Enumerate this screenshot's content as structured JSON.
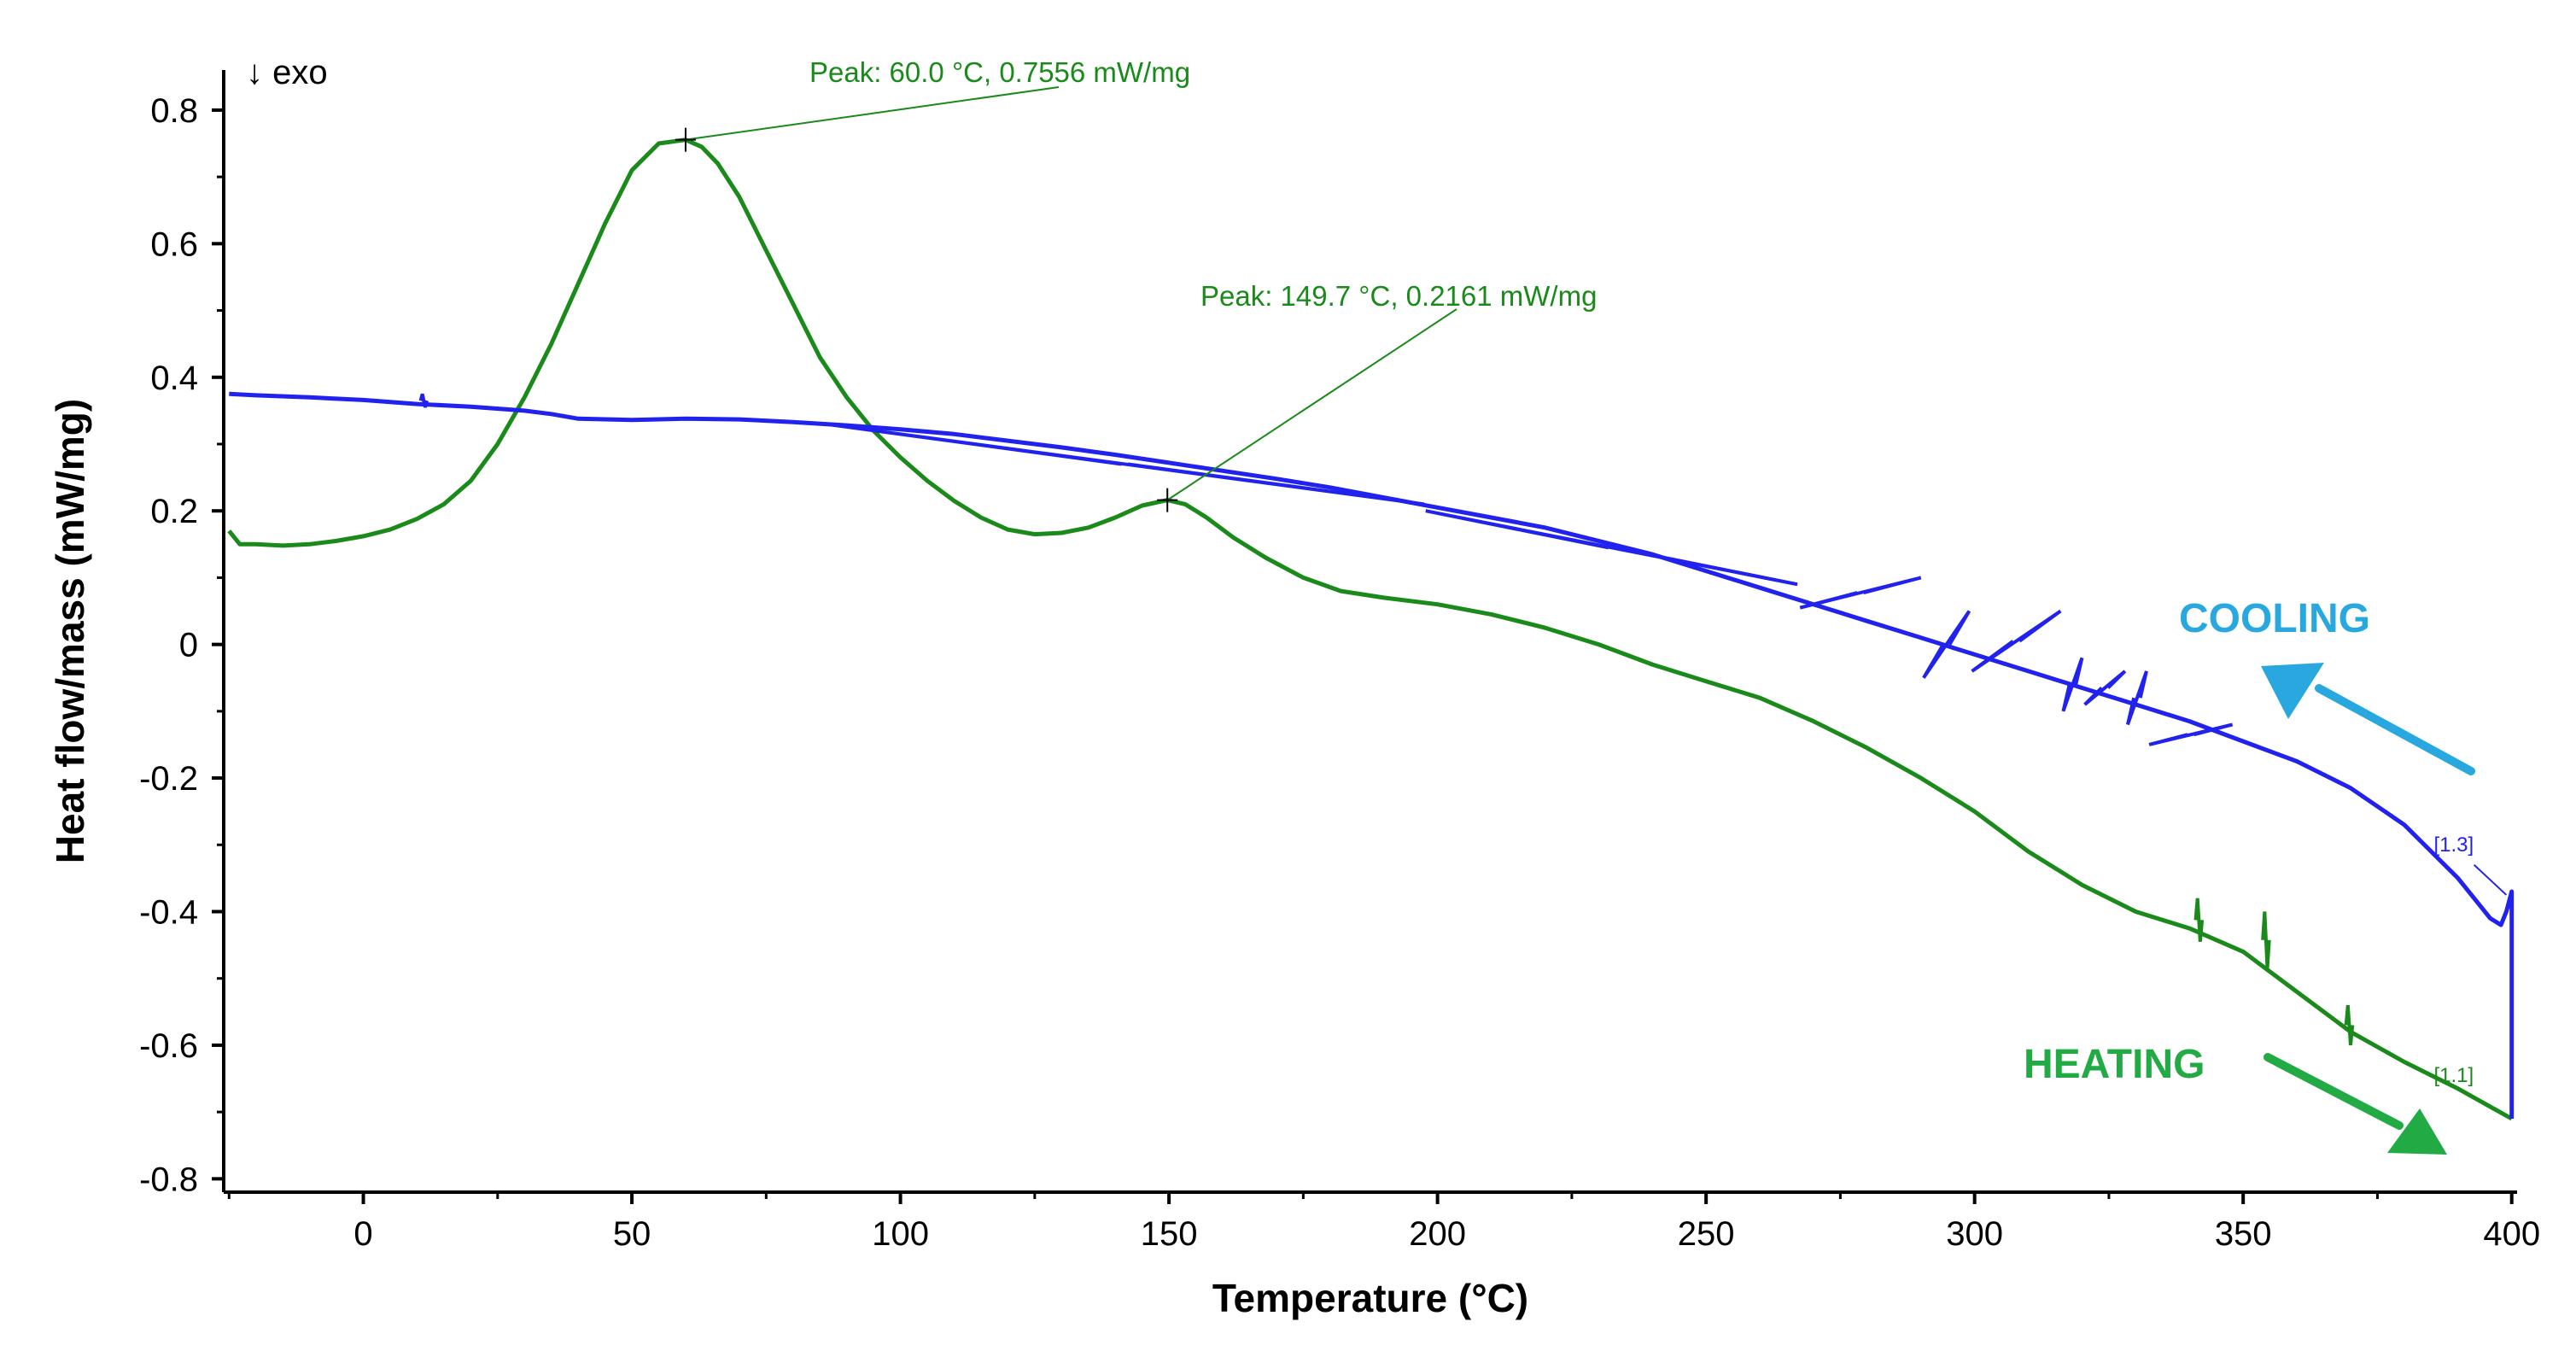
{
  "chart_data": {
    "type": "line",
    "title": "",
    "xlabel": "Temperature (°C)",
    "ylabel": "Heat flow/mass (mW/mg)",
    "xlim": [
      -26,
      401
    ],
    "ylim": [
      -0.82,
      0.86
    ],
    "x_ticks": [
      0,
      50,
      100,
      150,
      200,
      250,
      300,
      350,
      400
    ],
    "y_ticks": [
      0.8,
      0.6,
      0.4,
      0.2,
      0,
      -0.2,
      -0.4,
      -0.6,
      -0.8
    ],
    "grid": false,
    "direction_label": "↓ exo",
    "series": [
      {
        "name": "HEATING",
        "color": "#1a8a1a",
        "segment_label": "[1.1]",
        "points": [
          [
            -25,
            0.17
          ],
          [
            -23,
            0.15
          ],
          [
            -20,
            0.15
          ],
          [
            -15,
            0.148
          ],
          [
            -10,
            0.15
          ],
          [
            -5,
            0.155
          ],
          [
            0,
            0.162
          ],
          [
            5,
            0.172
          ],
          [
            10,
            0.188
          ],
          [
            15,
            0.21
          ],
          [
            20,
            0.245
          ],
          [
            25,
            0.3
          ],
          [
            30,
            0.37
          ],
          [
            35,
            0.45
          ],
          [
            40,
            0.54
          ],
          [
            45,
            0.63
          ],
          [
            50,
            0.71
          ],
          [
            55,
            0.75
          ],
          [
            60,
            0.7556
          ],
          [
            63,
            0.745
          ],
          [
            66,
            0.72
          ],
          [
            70,
            0.67
          ],
          [
            75,
            0.59
          ],
          [
            80,
            0.51
          ],
          [
            85,
            0.43
          ],
          [
            90,
            0.37
          ],
          [
            95,
            0.32
          ],
          [
            100,
            0.28
          ],
          [
            105,
            0.245
          ],
          [
            110,
            0.215
          ],
          [
            115,
            0.19
          ],
          [
            120,
            0.172
          ],
          [
            125,
            0.165
          ],
          [
            130,
            0.167
          ],
          [
            135,
            0.175
          ],
          [
            140,
            0.19
          ],
          [
            145,
            0.208
          ],
          [
            149.7,
            0.2161
          ],
          [
            153,
            0.21
          ],
          [
            157,
            0.19
          ],
          [
            162,
            0.16
          ],
          [
            168,
            0.13
          ],
          [
            175,
            0.1
          ],
          [
            182,
            0.08
          ],
          [
            190,
            0.07
          ],
          [
            200,
            0.06
          ],
          [
            210,
            0.045
          ],
          [
            220,
            0.025
          ],
          [
            230,
            0.0
          ],
          [
            240,
            -0.03
          ],
          [
            250,
            -0.055
          ],
          [
            260,
            -0.08
          ],
          [
            270,
            -0.115
          ],
          [
            280,
            -0.155
          ],
          [
            290,
            -0.2
          ],
          [
            300,
            -0.25
          ],
          [
            310,
            -0.31
          ],
          [
            320,
            -0.36
          ],
          [
            330,
            -0.4
          ],
          [
            340,
            -0.425
          ],
          [
            350,
            -0.46
          ],
          [
            360,
            -0.52
          ],
          [
            370,
            -0.58
          ],
          [
            380,
            -0.625
          ],
          [
            390,
            -0.665
          ],
          [
            400,
            -0.71
          ]
        ],
        "spikes": [
          [
            341.5,
            -0.38
          ],
          [
            342,
            -0.445
          ],
          [
            354,
            -0.4
          ],
          [
            354.5,
            -0.485
          ],
          [
            369.5,
            -0.54
          ],
          [
            370,
            -0.6
          ]
        ]
      },
      {
        "name": "COOLING",
        "color": "#2222ee",
        "segment_label": "[1.3]",
        "points": [
          [
            400,
            -0.71
          ],
          [
            400,
            -0.37
          ],
          [
            399,
            -0.4
          ],
          [
            398,
            -0.42
          ],
          [
            396,
            -0.41
          ],
          [
            394,
            -0.39
          ],
          [
            390,
            -0.35
          ],
          [
            385,
            -0.31
          ],
          [
            380,
            -0.27
          ],
          [
            370,
            -0.215
          ],
          [
            360,
            -0.175
          ],
          [
            350,
            -0.145
          ],
          [
            340,
            -0.115
          ],
          [
            330,
            -0.09
          ],
          [
            320,
            -0.065
          ],
          [
            310,
            -0.04
          ],
          [
            300,
            -0.015
          ],
          [
            290,
            0.01
          ],
          [
            280,
            0.035
          ],
          [
            270,
            0.06
          ],
          [
            260,
            0.085
          ],
          [
            250,
            0.11
          ],
          [
            240,
            0.135
          ],
          [
            230,
            0.155
          ],
          [
            220,
            0.175
          ],
          [
            210,
            0.19
          ],
          [
            200,
            0.205
          ],
          [
            190,
            0.22
          ],
          [
            180,
            0.235
          ],
          [
            170,
            0.248
          ],
          [
            160,
            0.26
          ],
          [
            150,
            0.272
          ],
          [
            140,
            0.284
          ],
          [
            130,
            0.295
          ],
          [
            120,
            0.305
          ],
          [
            110,
            0.315
          ],
          [
            100,
            0.322
          ],
          [
            90,
            0.328
          ],
          [
            80,
            0.333
          ],
          [
            70,
            0.337
          ],
          [
            60,
            0.338
          ],
          [
            50,
            0.336
          ],
          [
            40,
            0.338
          ],
          [
            35,
            0.345
          ],
          [
            30,
            0.35
          ],
          [
            20,
            0.356
          ],
          [
            10,
            0.36
          ],
          [
            0,
            0.366
          ],
          [
            -10,
            0.37
          ],
          [
            -20,
            0.373
          ],
          [
            -25,
            0.375
          ]
        ],
        "spikes": [
          [
            11,
            0.375
          ],
          [
            11.5,
            0.355
          ],
          [
            86,
            0.33
          ],
          [
            197.5,
            0.21
          ],
          [
            197.8,
            0.2
          ],
          [
            267,
            0.09
          ],
          [
            267.5,
            0.055
          ],
          [
            290,
            0.1
          ],
          [
            290.5,
            -0.05
          ],
          [
            299,
            0.05
          ],
          [
            299.5,
            -0.04
          ],
          [
            316,
            0.05
          ],
          [
            316.5,
            -0.1
          ],
          [
            320,
            -0.02
          ],
          [
            320.5,
            -0.09
          ],
          [
            328,
            -0.04
          ],
          [
            328.5,
            -0.12
          ],
          [
            332,
            -0.04
          ],
          [
            332.5,
            -0.15
          ],
          [
            348,
            -0.12
          ],
          [
            348.5,
            -0.17
          ]
        ]
      }
    ],
    "annotations": [
      {
        "text": "Peak: 60.0 °C, 0.7556 mW/mg",
        "marker": [
          60.0,
          0.7556
        ],
        "color": "#1a8a1a"
      },
      {
        "text": "Peak: 149.7 °C, 0.2161 mW/mg",
        "marker": [
          149.7,
          0.2161
        ],
        "color": "#1a8a1a"
      }
    ],
    "legend_labels": [
      {
        "text": "COOLING",
        "color": "#29a8e0"
      },
      {
        "text": "HEATING",
        "color": "#22aa44"
      }
    ]
  }
}
